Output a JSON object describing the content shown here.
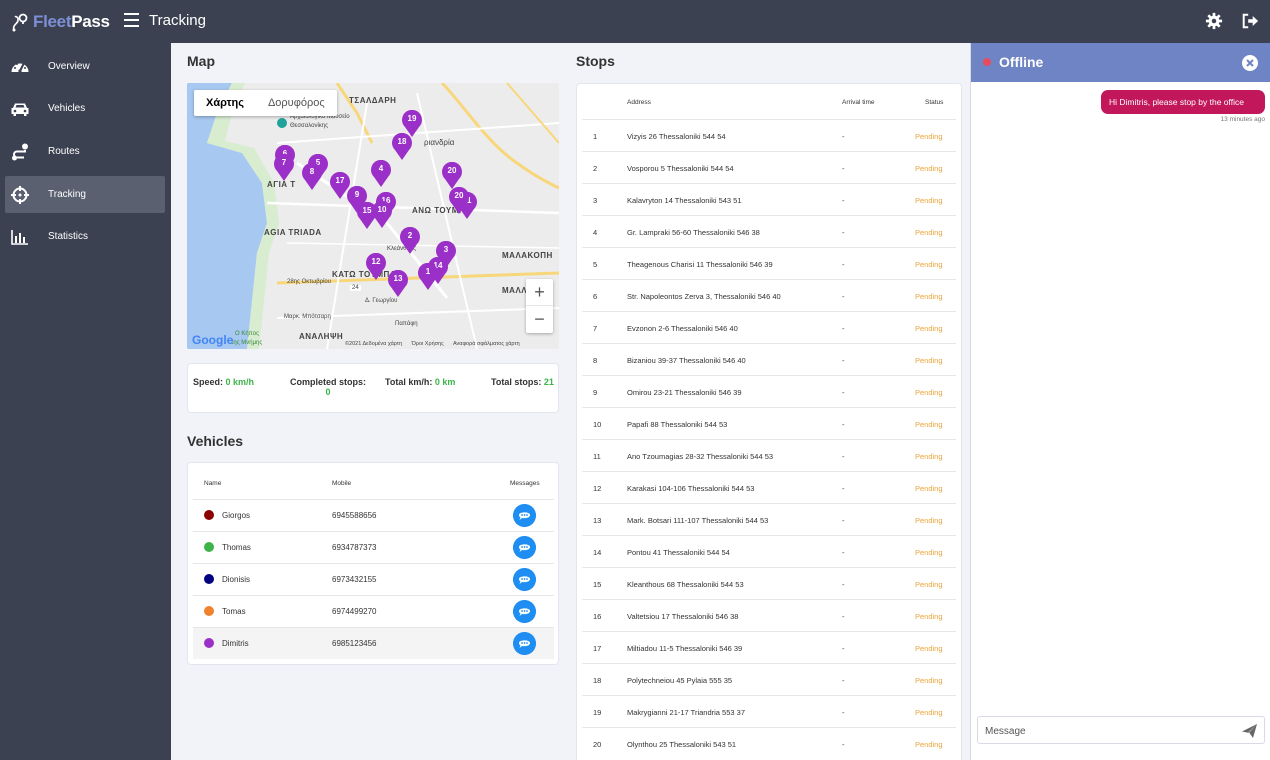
{
  "app": {
    "brand_part1": "Fleet",
    "brand_part2": "Pass",
    "page_title": "Tracking"
  },
  "sidebar": {
    "items": [
      {
        "label": "Overview",
        "icon": "speedometer-icon"
      },
      {
        "label": "Vehicles",
        "icon": "car-icon"
      },
      {
        "label": "Routes",
        "icon": "route-icon"
      },
      {
        "label": "Tracking",
        "icon": "crosshair-icon"
      },
      {
        "label": "Statistics",
        "icon": "bar-chart-icon"
      }
    ],
    "active": "Tracking"
  },
  "map_section": {
    "title": "Map",
    "tabs": [
      "Χάρτης",
      "Δορυφόρος"
    ],
    "active_tab": "Χάρτης",
    "zoom_in": "+",
    "zoom_out": "−",
    "google": "Google",
    "attribution": [
      "©2021 Δεδομένα χάρτη",
      "Όροι Χρήσης",
      "Αναφορά σφάλματος χάρτη"
    ],
    "labels": {
      "tsaldari": "ΤΣΑΛΔΑΡΗ",
      "museum1": "Αρχαιολογικό Μουσείο",
      "museum2": "Θεσσαλονίκης",
      "triandria": "ριανδρία",
      "agia_top": "ΑΓΙΑ Τ",
      "ano_toumpa": "ΑΝΩ ΤΟΥΜΠΑ",
      "agia_triada": "AGIA TRIADA",
      "malakopi": "ΜΑΛΑΚΟΠΗ",
      "kato_toumpa": "ΚΑΤΩ ΤΟΥΜΠΑ",
      "okt28": "28ης Οκτωβρίου",
      "marik": "Μαρκ. Μπότσαρη",
      "malli": "ΜΑΛΛ",
      "analipsi": "ΑΝΑΛΗΨΗ",
      "kipos1": "Ο Κήπος",
      "kipos2": "της Μνήμης",
      "kleanthous": "Κλεάνθους",
      "papafi": "Παπάφη",
      "kasandrou": "Δ. Γεωργίου",
      "road_24": "24"
    },
    "markers": [
      "1",
      "2",
      "3",
      "4",
      "5",
      "6",
      "7",
      "8",
      "9",
      "10",
      "12",
      "13",
      "14",
      "15",
      "16",
      "17",
      "18",
      "19",
      "20",
      "21"
    ]
  },
  "stats": {
    "speed_label": "Speed:",
    "speed_value": "0 km/h",
    "completed_label": "Completed stops:",
    "completed_value": "0",
    "total_km_label": "Total km/h:",
    "total_km_value": "0 km",
    "total_stops_label": "Total stops:",
    "total_stops_value": "21"
  },
  "vehicles": {
    "title": "Vehicles",
    "headers": {
      "name": "Name",
      "mobile": "Mobile",
      "messages": "Messages"
    },
    "rows": [
      {
        "name": "Giorgos",
        "mobile": "6945588656",
        "color": "#8b0000"
      },
      {
        "name": "Thomas",
        "mobile": "6934787373",
        "color": "#3db34a"
      },
      {
        "name": "Dionisis",
        "mobile": "6973432155",
        "color": "#000080"
      },
      {
        "name": "Tomas",
        "mobile": "6974499270",
        "color": "#f0822d"
      },
      {
        "name": "Dimitris",
        "mobile": "6985123456",
        "color": "#9b30c8"
      }
    ]
  },
  "stops": {
    "title": "Stops",
    "headers": {
      "address": "Address",
      "arrival": "Arrival time",
      "status": "Status"
    },
    "rows": [
      {
        "num": "1",
        "address": "Vizyis 26 Thessaloniki 544 54",
        "arrival": "-",
        "status": "Pending"
      },
      {
        "num": "2",
        "address": "Vosporou 5 Thessaloniki 544 54",
        "arrival": "-",
        "status": "Pending"
      },
      {
        "num": "3",
        "address": "Kalavryton 14 Thessaloniki 543 51",
        "arrival": "-",
        "status": "Pending"
      },
      {
        "num": "4",
        "address": "Gr. Lampraki 56-60 Thessaloniki 546 38",
        "arrival": "-",
        "status": "Pending"
      },
      {
        "num": "5",
        "address": "Theagenous Charisi 11 Thessaloniki 546 39",
        "arrival": "-",
        "status": "Pending"
      },
      {
        "num": "6",
        "address": "Str. Napoleontos Zerva 3, Thessaloniki 546 40",
        "arrival": "-",
        "status": "Pending"
      },
      {
        "num": "7",
        "address": "Evzonon 2-6 Thessaloniki 546 40",
        "arrival": "-",
        "status": "Pending"
      },
      {
        "num": "8",
        "address": "Bizaniou 39-37 Thessaloniki 546 40",
        "arrival": "-",
        "status": "Pending"
      },
      {
        "num": "9",
        "address": "Omirou 23-21 Thessaloniki 546 39",
        "arrival": "-",
        "status": "Pending"
      },
      {
        "num": "10",
        "address": "Papafi 88 Thessaloniki 544 53",
        "arrival": "-",
        "status": "Pending"
      },
      {
        "num": "11",
        "address": "Ano Tzoumagias 28-32 Thessaloniki 544 53",
        "arrival": "-",
        "status": "Pending"
      },
      {
        "num": "12",
        "address": "Karakasi 104-106 Thessaloniki 544 53",
        "arrival": "-",
        "status": "Pending"
      },
      {
        "num": "13",
        "address": "Mark. Botsari 111-107 Thessaloniki 544 53",
        "arrival": "-",
        "status": "Pending"
      },
      {
        "num": "14",
        "address": "Pontou 41 Thessaloniki 544 54",
        "arrival": "-",
        "status": "Pending"
      },
      {
        "num": "15",
        "address": "Kleanthous 68 Thessaloniki 544 53",
        "arrival": "-",
        "status": "Pending"
      },
      {
        "num": "16",
        "address": "Valtetsiou 17 Thessaloniki 546 38",
        "arrival": "-",
        "status": "Pending"
      },
      {
        "num": "17",
        "address": "Miltiadou 11-5 Thessaloniki 546 39",
        "arrival": "-",
        "status": "Pending"
      },
      {
        "num": "18",
        "address": "Polytechneiou 45 Pylaia 555 35",
        "arrival": "-",
        "status": "Pending"
      },
      {
        "num": "19",
        "address": "Makrygianni 21-17 Triandria 553 37",
        "arrival": "-",
        "status": "Pending"
      },
      {
        "num": "20",
        "address": "Olynthou 25 Thessaloniki 543 51",
        "arrival": "-",
        "status": "Pending"
      }
    ]
  },
  "chat": {
    "status": "Offline",
    "message": "Hi Dimitris, please stop by the office",
    "time": "13 minutes ago",
    "input_placeholder": "Message"
  },
  "colors": {
    "navbar": "#3b4150",
    "accent": "#6f84c4",
    "marker": "#9b30c8",
    "pending": "#e8a53a",
    "value_green": "#3db34a",
    "message_bubble": "#c2185b",
    "message_button": "#1e8ef2"
  }
}
